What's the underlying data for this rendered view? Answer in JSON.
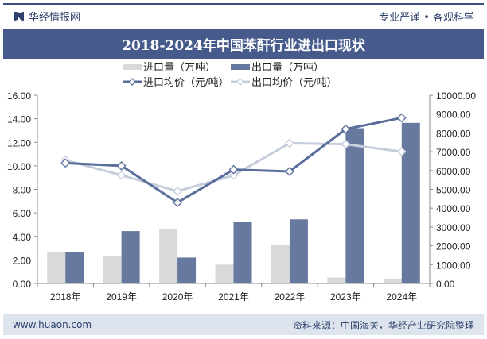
{
  "header": {
    "brand": "华经情报网",
    "slogan": "专业严谨 • 客观科学",
    "title": "2018-2024年中国苯酐行业进出口现状"
  },
  "footer": {
    "url": "www.huaon.com",
    "source": "资料来源：中国海关，华经产业研究院整理"
  },
  "colors": {
    "import_bar": "#d9d9d9",
    "export_bar": "#67799f",
    "import_price": "#5a6e9a",
    "export_price": "#c6cedd",
    "title_bg": "#465b8c"
  },
  "chart_data": {
    "type": "bar+line",
    "categories": [
      "2018年",
      "2019年",
      "2020年",
      "2021年",
      "2022年",
      "2023年",
      "2024年"
    ],
    "left_axis": {
      "ylim": [
        0,
        16
      ],
      "ticks": [
        "0.00",
        "2.00",
        "4.00",
        "6.00",
        "8.00",
        "10.00",
        "12.00",
        "14.00",
        "16.00"
      ]
    },
    "right_axis": {
      "ylim": [
        0,
        10000
      ],
      "ticks": [
        "0.00",
        "1000.00",
        "2000.00",
        "3000.00",
        "4000.00",
        "5000.00",
        "6000.00",
        "7000.00",
        "8000.00",
        "9000.00",
        "10000.00"
      ]
    },
    "series": [
      {
        "name": "进口量（万吨）",
        "type": "bar",
        "axis": "left",
        "values": [
          2.65,
          2.35,
          4.65,
          1.6,
          3.25,
          0.5,
          0.35
        ]
      },
      {
        "name": "出口量（万吨）",
        "type": "bar",
        "axis": "left",
        "values": [
          2.7,
          4.45,
          2.2,
          5.25,
          5.45,
          13.2,
          13.65
        ]
      },
      {
        "name": "进口均价（元/吨）",
        "type": "line",
        "axis": "right",
        "values": [
          6400,
          6250,
          4300,
          6050,
          5950,
          8200,
          8800
        ]
      },
      {
        "name": "出口均价（元/吨）",
        "type": "line",
        "axis": "right",
        "values": [
          6550,
          5750,
          4900,
          5750,
          7450,
          7400,
          7000
        ]
      }
    ],
    "grid": false,
    "legend": "top"
  }
}
